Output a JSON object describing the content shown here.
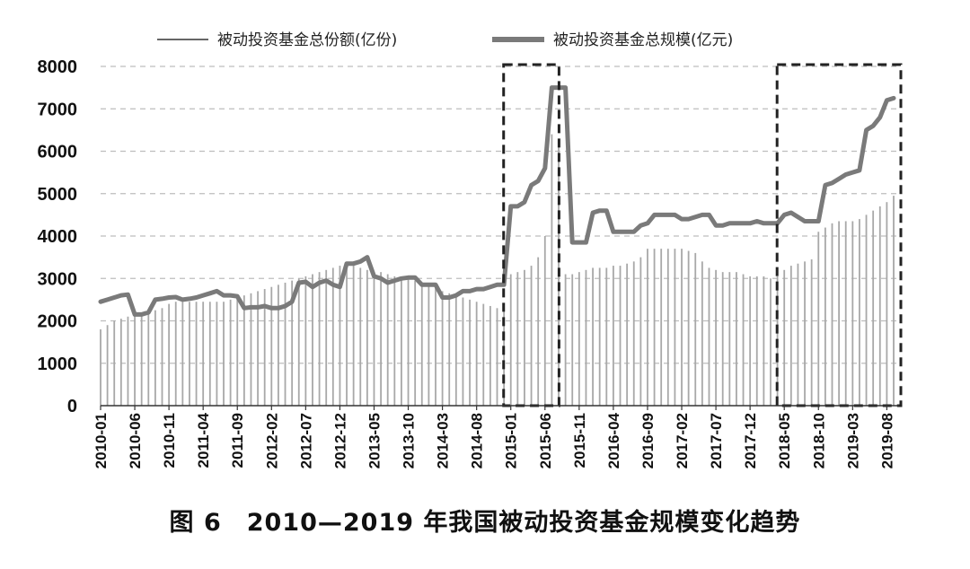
{
  "caption": "图 6　2010—2019 年我国被动投资基金规模变化趋势",
  "colors": {
    "bars": "#a8a8a8",
    "line": "#7a7a7a",
    "grid": "#bdbdbd",
    "axis": "#333333",
    "highlight_box": "#222222"
  },
  "chart_data": {
    "type": "bar+line",
    "x": [
      "2010-01",
      "2010-02",
      "2010-03",
      "2010-04",
      "2010-05",
      "2010-06",
      "2010-07",
      "2010-08",
      "2010-09",
      "2010-10",
      "2010-11",
      "2010-12",
      "2011-01",
      "2011-02",
      "2011-03",
      "2011-04",
      "2011-05",
      "2011-06",
      "2011-07",
      "2011-08",
      "2011-09",
      "2011-10",
      "2011-11",
      "2011-12",
      "2012-01",
      "2012-02",
      "2012-03",
      "2012-04",
      "2012-05",
      "2012-06",
      "2012-07",
      "2012-08",
      "2012-09",
      "2012-10",
      "2012-11",
      "2012-12",
      "2013-01",
      "2013-02",
      "2013-03",
      "2013-04",
      "2013-05",
      "2013-06",
      "2013-07",
      "2013-08",
      "2013-09",
      "2013-10",
      "2013-11",
      "2013-12",
      "2014-01",
      "2014-02",
      "2014-03",
      "2014-04",
      "2014-05",
      "2014-06",
      "2014-07",
      "2014-08",
      "2014-09",
      "2014-10",
      "2014-11",
      "2014-12",
      "2015-01",
      "2015-02",
      "2015-03",
      "2015-04",
      "2015-05",
      "2015-06",
      "2015-07",
      "2015-08",
      "2015-09",
      "2015-10",
      "2015-11",
      "2015-12",
      "2016-01",
      "2016-02",
      "2016-03",
      "2016-04",
      "2016-05",
      "2016-06",
      "2016-07",
      "2016-08",
      "2016-09",
      "2016-10",
      "2016-11",
      "2016-12",
      "2017-01",
      "2017-02",
      "2017-03",
      "2017-04",
      "2017-05",
      "2017-06",
      "2017-07",
      "2017-08",
      "2017-09",
      "2017-10",
      "2017-11",
      "2017-12",
      "2018-01",
      "2018-02",
      "2018-03",
      "2018-04",
      "2018-05",
      "2018-06",
      "2018-07",
      "2018-08",
      "2018-09",
      "2018-10",
      "2018-11",
      "2018-12",
      "2019-01",
      "2019-02",
      "2019-03",
      "2019-04",
      "2019-05",
      "2019-06",
      "2019-07",
      "2019-08",
      "2019-09"
    ],
    "x_tick_labels": [
      "2010-01",
      "2010-06",
      "2010-11",
      "2011-04",
      "2011-09",
      "2012-02",
      "2012-07",
      "2012-12",
      "2013-05",
      "2013-10",
      "2014-03",
      "2014-08",
      "2015-01",
      "2015-06",
      "2015-11",
      "2016-04",
      "2016-09",
      "2017-02",
      "2017-07",
      "2017-12",
      "2018-05",
      "2018-10",
      "2019-03",
      "2019-08"
    ],
    "ylim": [
      0,
      8000
    ],
    "yticks": [
      0,
      1000,
      2000,
      3000,
      4000,
      5000,
      6000,
      7000,
      8000
    ],
    "grid": true,
    "legend_position": "top-center",
    "series": [
      {
        "name": "被动投资基金总份额(亿份)",
        "type": "bar",
        "values": [
          1800,
          1900,
          2000,
          2050,
          2100,
          2150,
          2150,
          2200,
          2250,
          2300,
          2400,
          2450,
          2450,
          2450,
          2450,
          2450,
          2450,
          2450,
          2450,
          2500,
          2550,
          2600,
          2650,
          2700,
          2750,
          2800,
          2850,
          2900,
          2950,
          3000,
          3050,
          3100,
          3150,
          3200,
          3250,
          3300,
          3300,
          3300,
          3250,
          3200,
          3150,
          3150,
          3100,
          3050,
          3000,
          3000,
          2950,
          2900,
          2850,
          2800,
          2700,
          2650,
          2600,
          2550,
          2500,
          2450,
          2400,
          2350,
          2300,
          2300,
          3100,
          3150,
          3200,
          3300,
          3500,
          4000,
          6400,
          6100,
          3100,
          3100,
          3150,
          3200,
          3250,
          3250,
          3250,
          3300,
          3300,
          3350,
          3400,
          3500,
          3700,
          3700,
          3700,
          3700,
          3700,
          3700,
          3650,
          3600,
          3400,
          3250,
          3200,
          3150,
          3150,
          3150,
          3100,
          3050,
          3050,
          3050,
          3000,
          3050,
          3200,
          3300,
          3350,
          3400,
          3450,
          4100,
          4200,
          4300,
          4350,
          4350,
          4350,
          4400,
          4500,
          4600,
          4700,
          4800,
          4950
        ]
      },
      {
        "name": "被动投资基金总规模(亿元)",
        "type": "line",
        "values": [
          2450,
          2500,
          2550,
          2600,
          2620,
          2150,
          2150,
          2200,
          2500,
          2520,
          2550,
          2560,
          2500,
          2520,
          2550,
          2600,
          2650,
          2700,
          2600,
          2600,
          2580,
          2300,
          2320,
          2320,
          2350,
          2300,
          2300,
          2350,
          2450,
          2900,
          2920,
          2800,
          2900,
          2950,
          2850,
          2800,
          3350,
          3350,
          3400,
          3500,
          3050,
          3000,
          2900,
          2950,
          3000,
          3020,
          3020,
          2850,
          2850,
          2850,
          2550,
          2550,
          2600,
          2700,
          2700,
          2750,
          2750,
          2800,
          2850,
          2850,
          4700,
          4700,
          4800,
          5200,
          5300,
          5600,
          7500,
          7500,
          7500,
          3850,
          3850,
          3850,
          4550,
          4600,
          4600,
          4100,
          4100,
          4100,
          4100,
          4250,
          4300,
          4500,
          4500,
          4500,
          4500,
          4400,
          4400,
          4450,
          4500,
          4500,
          4250,
          4250,
          4300,
          4300,
          4300,
          4300,
          4350,
          4300,
          4300,
          4300,
          4500,
          4550,
          4450,
          4350,
          4350,
          4350,
          5200,
          5250,
          5350,
          5450,
          5500,
          5550,
          6500,
          6600,
          6800,
          7200,
          7250
        ]
      }
    ],
    "annotations": [
      {
        "type": "dashed-box",
        "x_from": "2015-01",
        "x_to": "2015-07"
      },
      {
        "type": "dashed-box",
        "x_from": "2018-05",
        "x_to": "2019-09"
      }
    ]
  }
}
